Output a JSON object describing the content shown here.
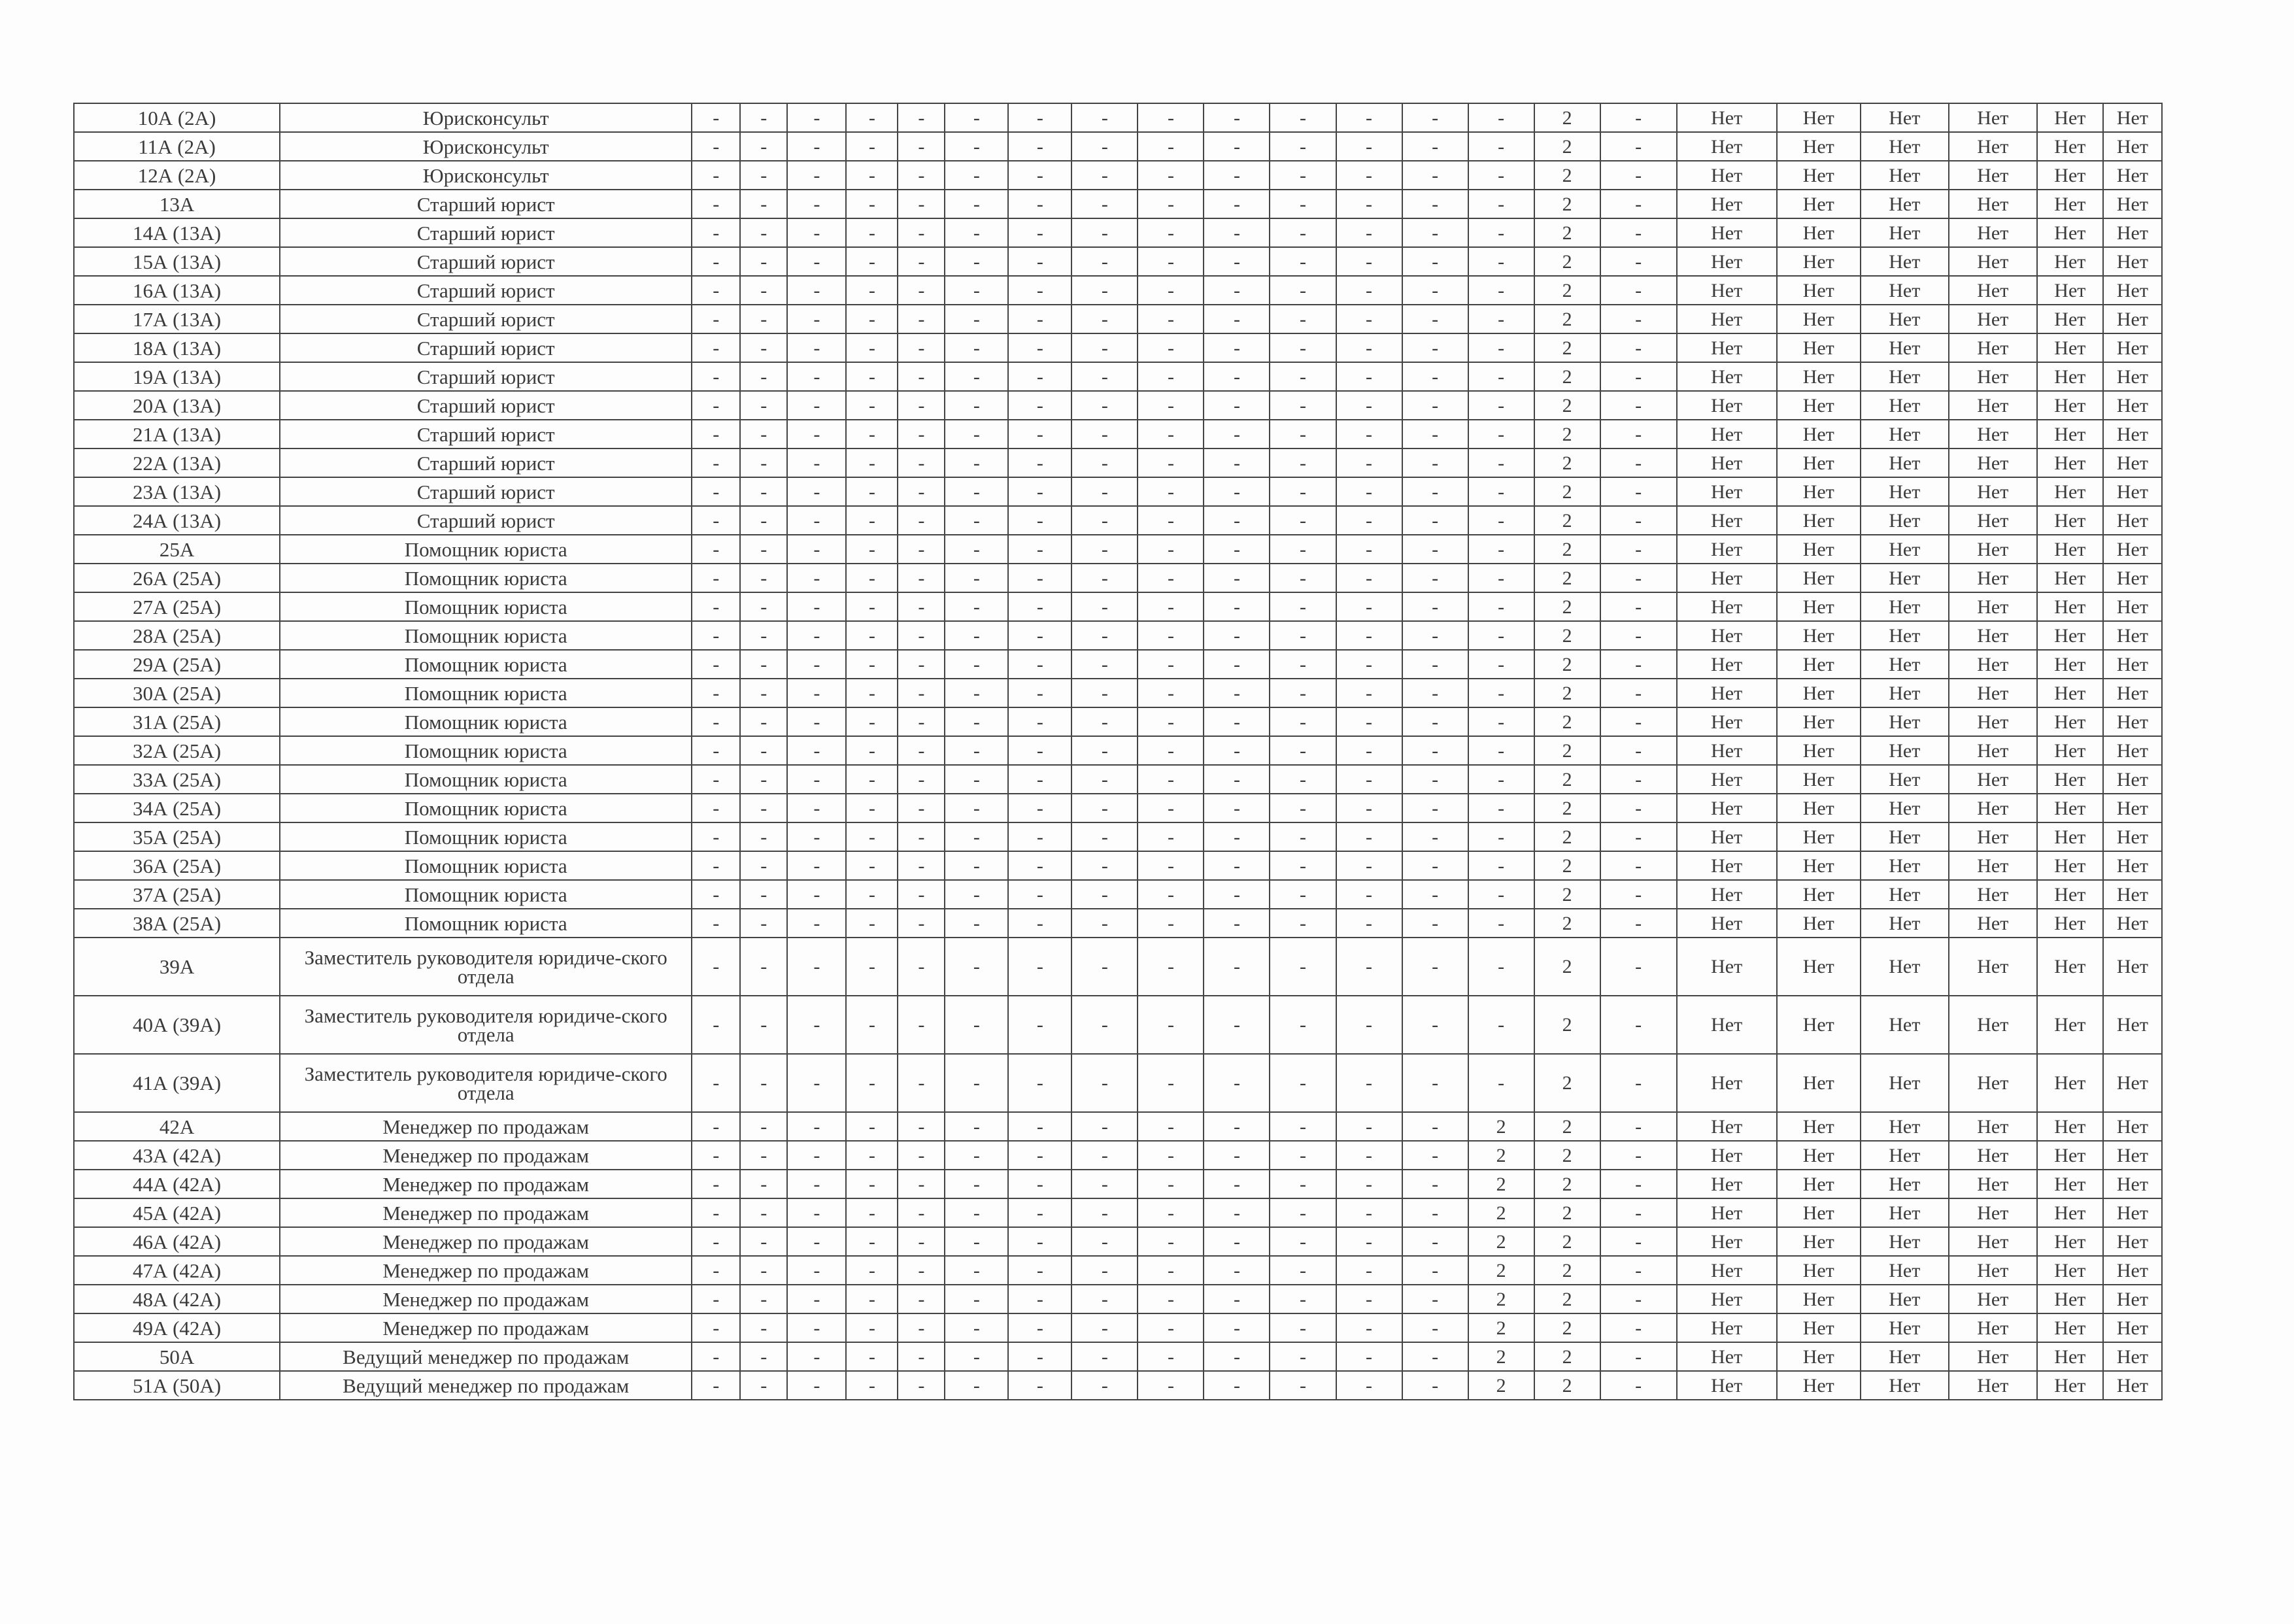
{
  "table": {
    "rows": [
      {
        "id": "10А (2А)",
        "title": "Юрисконсульт",
        "cells": [
          "-",
          "-",
          "-",
          "-",
          "-",
          "-",
          "-",
          "-",
          "-",
          "-",
          "-",
          "-",
          "-",
          "-",
          "2",
          "-",
          "Нет",
          "Нет",
          "Нет",
          "Нет",
          "Нет",
          "Нет"
        ]
      },
      {
        "id": "11А (2А)",
        "title": "Юрисконсульт",
        "cells": [
          "-",
          "-",
          "-",
          "-",
          "-",
          "-",
          "-",
          "-",
          "-",
          "-",
          "-",
          "-",
          "-",
          "-",
          "2",
          "-",
          "Нет",
          "Нет",
          "Нет",
          "Нет",
          "Нет",
          "Нет"
        ]
      },
      {
        "id": "12А (2А)",
        "title": "Юрисконсульт",
        "cells": [
          "-",
          "-",
          "-",
          "-",
          "-",
          "-",
          "-",
          "-",
          "-",
          "-",
          "-",
          "-",
          "-",
          "-",
          "2",
          "-",
          "Нет",
          "Нет",
          "Нет",
          "Нет",
          "Нет",
          "Нет"
        ]
      },
      {
        "id": "13А",
        "title": "Старший юрист",
        "cells": [
          "-",
          "-",
          "-",
          "-",
          "-",
          "-",
          "-",
          "-",
          "-",
          "-",
          "-",
          "-",
          "-",
          "-",
          "2",
          "-",
          "Нет",
          "Нет",
          "Нет",
          "Нет",
          "Нет",
          "Нет"
        ]
      },
      {
        "id": "14А (13А)",
        "title": "Старший юрист",
        "cells": [
          "-",
          "-",
          "-",
          "-",
          "-",
          "-",
          "-",
          "-",
          "-",
          "-",
          "-",
          "-",
          "-",
          "-",
          "2",
          "-",
          "Нет",
          "Нет",
          "Нет",
          "Нет",
          "Нет",
          "Нет"
        ]
      },
      {
        "id": "15А (13А)",
        "title": "Старший юрист",
        "cells": [
          "-",
          "-",
          "-",
          "-",
          "-",
          "-",
          "-",
          "-",
          "-",
          "-",
          "-",
          "-",
          "-",
          "-",
          "2",
          "-",
          "Нет",
          "Нет",
          "Нет",
          "Нет",
          "Нет",
          "Нет"
        ]
      },
      {
        "id": "16А (13А)",
        "title": "Старший юрист",
        "cells": [
          "-",
          "-",
          "-",
          "-",
          "-",
          "-",
          "-",
          "-",
          "-",
          "-",
          "-",
          "-",
          "-",
          "-",
          "2",
          "-",
          "Нет",
          "Нет",
          "Нет",
          "Нет",
          "Нет",
          "Нет"
        ]
      },
      {
        "id": "17А (13А)",
        "title": "Старший юрист",
        "cells": [
          "-",
          "-",
          "-",
          "-",
          "-",
          "-",
          "-",
          "-",
          "-",
          "-",
          "-",
          "-",
          "-",
          "-",
          "2",
          "-",
          "Нет",
          "Нет",
          "Нет",
          "Нет",
          "Нет",
          "Нет"
        ]
      },
      {
        "id": "18А (13А)",
        "title": "Старший юрист",
        "cells": [
          "-",
          "-",
          "-",
          "-",
          "-",
          "-",
          "-",
          "-",
          "-",
          "-",
          "-",
          "-",
          "-",
          "-",
          "2",
          "-",
          "Нет",
          "Нет",
          "Нет",
          "Нет",
          "Нет",
          "Нет"
        ]
      },
      {
        "id": "19А (13А)",
        "title": "Старший юрист",
        "cells": [
          "-",
          "-",
          "-",
          "-",
          "-",
          "-",
          "-",
          "-",
          "-",
          "-",
          "-",
          "-",
          "-",
          "-",
          "2",
          "-",
          "Нет",
          "Нет",
          "Нет",
          "Нет",
          "Нет",
          "Нет"
        ]
      },
      {
        "id": "20А (13А)",
        "title": "Старший юрист",
        "cells": [
          "-",
          "-",
          "-",
          "-",
          "-",
          "-",
          "-",
          "-",
          "-",
          "-",
          "-",
          "-",
          "-",
          "-",
          "2",
          "-",
          "Нет",
          "Нет",
          "Нет",
          "Нет",
          "Нет",
          "Нет"
        ]
      },
      {
        "id": "21А (13А)",
        "title": "Старший юрист",
        "cells": [
          "-",
          "-",
          "-",
          "-",
          "-",
          "-",
          "-",
          "-",
          "-",
          "-",
          "-",
          "-",
          "-",
          "-",
          "2",
          "-",
          "Нет",
          "Нет",
          "Нет",
          "Нет",
          "Нет",
          "Нет"
        ]
      },
      {
        "id": "22А (13А)",
        "title": "Старший юрист",
        "cells": [
          "-",
          "-",
          "-",
          "-",
          "-",
          "-",
          "-",
          "-",
          "-",
          "-",
          "-",
          "-",
          "-",
          "-",
          "2",
          "-",
          "Нет",
          "Нет",
          "Нет",
          "Нет",
          "Нет",
          "Нет"
        ]
      },
      {
        "id": "23А (13А)",
        "title": "Старший юрист",
        "cells": [
          "-",
          "-",
          "-",
          "-",
          "-",
          "-",
          "-",
          "-",
          "-",
          "-",
          "-",
          "-",
          "-",
          "-",
          "2",
          "-",
          "Нет",
          "Нет",
          "Нет",
          "Нет",
          "Нет",
          "Нет"
        ]
      },
      {
        "id": "24А (13А)",
        "title": "Старший юрист",
        "cells": [
          "-",
          "-",
          "-",
          "-",
          "-",
          "-",
          "-",
          "-",
          "-",
          "-",
          "-",
          "-",
          "-",
          "-",
          "2",
          "-",
          "Нет",
          "Нет",
          "Нет",
          "Нет",
          "Нет",
          "Нет"
        ]
      },
      {
        "id": "25А",
        "title": "Помощник юриста",
        "cells": [
          "-",
          "-",
          "-",
          "-",
          "-",
          "-",
          "-",
          "-",
          "-",
          "-",
          "-",
          "-",
          "-",
          "-",
          "2",
          "-",
          "Нет",
          "Нет",
          "Нет",
          "Нет",
          "Нет",
          "Нет"
        ]
      },
      {
        "id": "26А (25А)",
        "title": "Помощник юриста",
        "cells": [
          "-",
          "-",
          "-",
          "-",
          "-",
          "-",
          "-",
          "-",
          "-",
          "-",
          "-",
          "-",
          "-",
          "-",
          "2",
          "-",
          "Нет",
          "Нет",
          "Нет",
          "Нет",
          "Нет",
          "Нет"
        ]
      },
      {
        "id": "27А (25А)",
        "title": "Помощник юриста",
        "cells": [
          "-",
          "-",
          "-",
          "-",
          "-",
          "-",
          "-",
          "-",
          "-",
          "-",
          "-",
          "-",
          "-",
          "-",
          "2",
          "-",
          "Нет",
          "Нет",
          "Нет",
          "Нет",
          "Нет",
          "Нет"
        ]
      },
      {
        "id": "28А (25А)",
        "title": "Помощник юриста",
        "cells": [
          "-",
          "-",
          "-",
          "-",
          "-",
          "-",
          "-",
          "-",
          "-",
          "-",
          "-",
          "-",
          "-",
          "-",
          "2",
          "-",
          "Нет",
          "Нет",
          "Нет",
          "Нет",
          "Нет",
          "Нет"
        ]
      },
      {
        "id": "29А (25А)",
        "title": "Помощник юриста",
        "cells": [
          "-",
          "-",
          "-",
          "-",
          "-",
          "-",
          "-",
          "-",
          "-",
          "-",
          "-",
          "-",
          "-",
          "-",
          "2",
          "-",
          "Нет",
          "Нет",
          "Нет",
          "Нет",
          "Нет",
          "Нет"
        ]
      },
      {
        "id": "30А (25А)",
        "title": "Помощник юриста",
        "cells": [
          "-",
          "-",
          "-",
          "-",
          "-",
          "-",
          "-",
          "-",
          "-",
          "-",
          "-",
          "-",
          "-",
          "-",
          "2",
          "-",
          "Нет",
          "Нет",
          "Нет",
          "Нет",
          "Нет",
          "Нет"
        ]
      },
      {
        "id": "31А (25А)",
        "title": "Помощник юриста",
        "cells": [
          "-",
          "-",
          "-",
          "-",
          "-",
          "-",
          "-",
          "-",
          "-",
          "-",
          "-",
          "-",
          "-",
          "-",
          "2",
          "-",
          "Нет",
          "Нет",
          "Нет",
          "Нет",
          "Нет",
          "Нет"
        ]
      },
      {
        "id": "32А (25А)",
        "title": "Помощник юриста",
        "cells": [
          "-",
          "-",
          "-",
          "-",
          "-",
          "-",
          "-",
          "-",
          "-",
          "-",
          "-",
          "-",
          "-",
          "-",
          "2",
          "-",
          "Нет",
          "Нет",
          "Нет",
          "Нет",
          "Нет",
          "Нет"
        ]
      },
      {
        "id": "33А (25А)",
        "title": "Помощник юриста",
        "cells": [
          "-",
          "-",
          "-",
          "-",
          "-",
          "-",
          "-",
          "-",
          "-",
          "-",
          "-",
          "-",
          "-",
          "-",
          "2",
          "-",
          "Нет",
          "Нет",
          "Нет",
          "Нет",
          "Нет",
          "Нет"
        ]
      },
      {
        "id": "34А (25А)",
        "title": "Помощник юриста",
        "cells": [
          "-",
          "-",
          "-",
          "-",
          "-",
          "-",
          "-",
          "-",
          "-",
          "-",
          "-",
          "-",
          "-",
          "-",
          "2",
          "-",
          "Нет",
          "Нет",
          "Нет",
          "Нет",
          "Нет",
          "Нет"
        ]
      },
      {
        "id": "35А (25А)",
        "title": "Помощник юриста",
        "cells": [
          "-",
          "-",
          "-",
          "-",
          "-",
          "-",
          "-",
          "-",
          "-",
          "-",
          "-",
          "-",
          "-",
          "-",
          "2",
          "-",
          "Нет",
          "Нет",
          "Нет",
          "Нет",
          "Нет",
          "Нет"
        ]
      },
      {
        "id": "36А (25А)",
        "title": "Помощник юриста",
        "cells": [
          "-",
          "-",
          "-",
          "-",
          "-",
          "-",
          "-",
          "-",
          "-",
          "-",
          "-",
          "-",
          "-",
          "-",
          "2",
          "-",
          "Нет",
          "Нет",
          "Нет",
          "Нет",
          "Нет",
          "Нет"
        ]
      },
      {
        "id": "37А (25А)",
        "title": "Помощник юриста",
        "cells": [
          "-",
          "-",
          "-",
          "-",
          "-",
          "-",
          "-",
          "-",
          "-",
          "-",
          "-",
          "-",
          "-",
          "-",
          "2",
          "-",
          "Нет",
          "Нет",
          "Нет",
          "Нет",
          "Нет",
          "Нет"
        ]
      },
      {
        "id": "38А (25А)",
        "title": "Помощник юриста",
        "cells": [
          "-",
          "-",
          "-",
          "-",
          "-",
          "-",
          "-",
          "-",
          "-",
          "-",
          "-",
          "-",
          "-",
          "-",
          "2",
          "-",
          "Нет",
          "Нет",
          "Нет",
          "Нет",
          "Нет",
          "Нет"
        ]
      },
      {
        "id": "39А",
        "title": "Заместитель руководителя юридиче-ского отдела",
        "cells": [
          "-",
          "-",
          "-",
          "-",
          "-",
          "-",
          "-",
          "-",
          "-",
          "-",
          "-",
          "-",
          "-",
          "-",
          "2",
          "-",
          "Нет",
          "Нет",
          "Нет",
          "Нет",
          "Нет",
          "Нет"
        ]
      },
      {
        "id": "40А (39А)",
        "title": "Заместитель руководителя юридиче-ского отдела",
        "cells": [
          "-",
          "-",
          "-",
          "-",
          "-",
          "-",
          "-",
          "-",
          "-",
          "-",
          "-",
          "-",
          "-",
          "-",
          "2",
          "-",
          "Нет",
          "Нет",
          "Нет",
          "Нет",
          "Нет",
          "Нет"
        ]
      },
      {
        "id": "41А (39А)",
        "title": "Заместитель руководителя юридиче-ского отдела",
        "cells": [
          "-",
          "-",
          "-",
          "-",
          "-",
          "-",
          "-",
          "-",
          "-",
          "-",
          "-",
          "-",
          "-",
          "-",
          "2",
          "-",
          "Нет",
          "Нет",
          "Нет",
          "Нет",
          "Нет",
          "Нет"
        ]
      },
      {
        "id": "42А",
        "title": "Менеджер по продажам",
        "cells": [
          "-",
          "-",
          "-",
          "-",
          "-",
          "-",
          "-",
          "-",
          "-",
          "-",
          "-",
          "-",
          "-",
          "2",
          "2",
          "-",
          "Нет",
          "Нет",
          "Нет",
          "Нет",
          "Нет",
          "Нет"
        ]
      },
      {
        "id": "43А (42А)",
        "title": "Менеджер по продажам",
        "cells": [
          "-",
          "-",
          "-",
          "-",
          "-",
          "-",
          "-",
          "-",
          "-",
          "-",
          "-",
          "-",
          "-",
          "2",
          "2",
          "-",
          "Нет",
          "Нет",
          "Нет",
          "Нет",
          "Нет",
          "Нет"
        ]
      },
      {
        "id": "44А (42А)",
        "title": "Менеджер по продажам",
        "cells": [
          "-",
          "-",
          "-",
          "-",
          "-",
          "-",
          "-",
          "-",
          "-",
          "-",
          "-",
          "-",
          "-",
          "2",
          "2",
          "-",
          "Нет",
          "Нет",
          "Нет",
          "Нет",
          "Нет",
          "Нет"
        ]
      },
      {
        "id": "45А (42А)",
        "title": "Менеджер по продажам",
        "cells": [
          "-",
          "-",
          "-",
          "-",
          "-",
          "-",
          "-",
          "-",
          "-",
          "-",
          "-",
          "-",
          "-",
          "2",
          "2",
          "-",
          "Нет",
          "Нет",
          "Нет",
          "Нет",
          "Нет",
          "Нет"
        ]
      },
      {
        "id": "46А (42А)",
        "title": "Менеджер по продажам",
        "cells": [
          "-",
          "-",
          "-",
          "-",
          "-",
          "-",
          "-",
          "-",
          "-",
          "-",
          "-",
          "-",
          "-",
          "2",
          "2",
          "-",
          "Нет",
          "Нет",
          "Нет",
          "Нет",
          "Нет",
          "Нет"
        ]
      },
      {
        "id": "47А (42А)",
        "title": "Менеджер по продажам",
        "cells": [
          "-",
          "-",
          "-",
          "-",
          "-",
          "-",
          "-",
          "-",
          "-",
          "-",
          "-",
          "-",
          "-",
          "2",
          "2",
          "-",
          "Нет",
          "Нет",
          "Нет",
          "Нет",
          "Нет",
          "Нет"
        ]
      },
      {
        "id": "48А (42А)",
        "title": "Менеджер по продажам",
        "cells": [
          "-",
          "-",
          "-",
          "-",
          "-",
          "-",
          "-",
          "-",
          "-",
          "-",
          "-",
          "-",
          "-",
          "2",
          "2",
          "-",
          "Нет",
          "Нет",
          "Нет",
          "Нет",
          "Нет",
          "Нет"
        ]
      },
      {
        "id": "49А (42А)",
        "title": "Менеджер по продажам",
        "cells": [
          "-",
          "-",
          "-",
          "-",
          "-",
          "-",
          "-",
          "-",
          "-",
          "-",
          "-",
          "-",
          "-",
          "2",
          "2",
          "-",
          "Нет",
          "Нет",
          "Нет",
          "Нет",
          "Нет",
          "Нет"
        ]
      },
      {
        "id": "50А",
        "title": "Ведущий менеджер по продажам",
        "cells": [
          "-",
          "-",
          "-",
          "-",
          "-",
          "-",
          "-",
          "-",
          "-",
          "-",
          "-",
          "-",
          "-",
          "2",
          "2",
          "-",
          "Нет",
          "Нет",
          "Нет",
          "Нет",
          "Нет",
          "Нет"
        ]
      },
      {
        "id": "51А (50А)",
        "title": "Ведущий менеджер по продажам",
        "cells": [
          "-",
          "-",
          "-",
          "-",
          "-",
          "-",
          "-",
          "-",
          "-",
          "-",
          "-",
          "-",
          "-",
          "2",
          "2",
          "-",
          "Нет",
          "Нет",
          "Нет",
          "Нет",
          "Нет",
          "Нет"
        ]
      }
    ]
  }
}
